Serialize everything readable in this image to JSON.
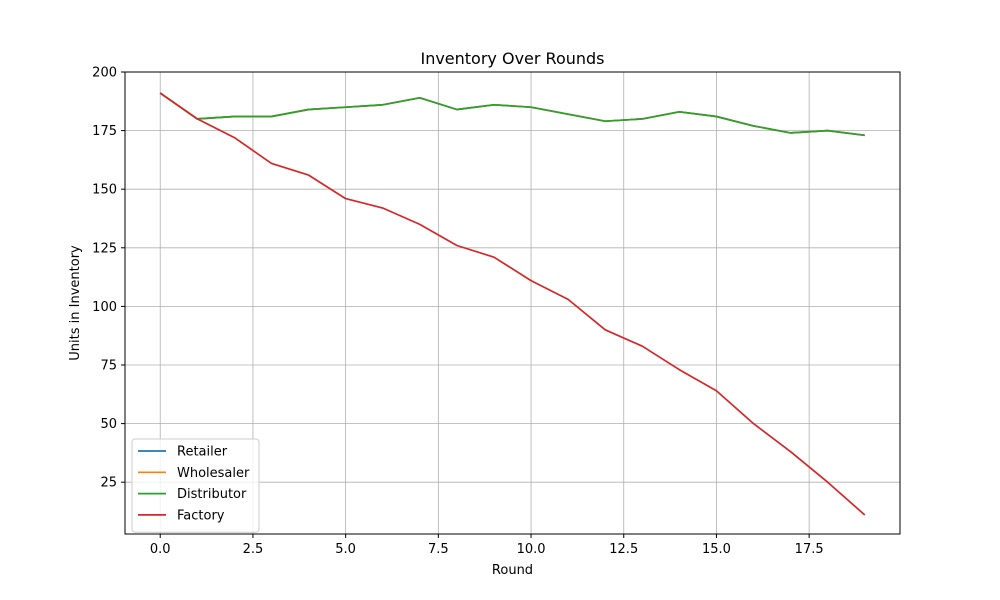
{
  "chart_data": {
    "type": "line",
    "title": "Inventory Over Rounds",
    "xlabel": "Round",
    "ylabel": "Units in Inventory",
    "xlim": [
      -0.95,
      19.95
    ],
    "ylim": [
      2.9,
      200
    ],
    "xticks": [
      0.0,
      2.5,
      5.0,
      7.5,
      10.0,
      12.5,
      15.0,
      17.5
    ],
    "xtick_labels": [
      "0.0",
      "2.5",
      "5.0",
      "7.5",
      "10.0",
      "12.5",
      "15.0",
      "17.5"
    ],
    "yticks": [
      25,
      50,
      75,
      100,
      125,
      150,
      175,
      200
    ],
    "ytick_labels": [
      "25",
      "50",
      "75",
      "100",
      "125",
      "150",
      "175",
      "200"
    ],
    "grid": true,
    "legend_position": "lower-left",
    "x": [
      0,
      1,
      2,
      3,
      4,
      5,
      6,
      7,
      8,
      9,
      10,
      11,
      12,
      13,
      14,
      15,
      16,
      17,
      18,
      19
    ],
    "series": [
      {
        "name": "Retailer",
        "color": "#1f77b4",
        "values": [
          191,
          180,
          181,
          181,
          184,
          185,
          186,
          189,
          184,
          186,
          185,
          182,
          179,
          180,
          183,
          181,
          177,
          174,
          175,
          173
        ]
      },
      {
        "name": "Wholesaler",
        "color": "#ff7f0e",
        "values": [
          191,
          180,
          181,
          181,
          184,
          185,
          186,
          189,
          184,
          186,
          185,
          182,
          179,
          180,
          183,
          181,
          177,
          174,
          175,
          173
        ]
      },
      {
        "name": "Distributor",
        "color": "#2ca02c",
        "values": [
          191,
          180,
          181,
          181,
          184,
          185,
          186,
          189,
          184,
          186,
          185,
          182,
          179,
          180,
          183,
          181,
          177,
          174,
          175,
          173
        ]
      },
      {
        "name": "Factory",
        "color": "#d62728",
        "values": [
          191,
          180,
          172,
          161,
          156,
          146,
          142,
          135,
          126,
          121,
          111,
          103,
          90,
          83,
          73,
          64,
          50,
          38,
          25,
          11
        ]
      }
    ]
  }
}
